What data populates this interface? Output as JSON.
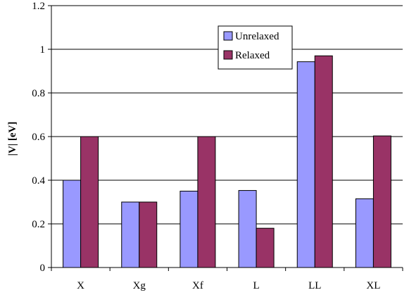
{
  "chart_data": {
    "type": "bar",
    "title": "",
    "xlabel": "",
    "ylabel": "|V| [eV]",
    "ylim": [
      0,
      1.2
    ],
    "yticks": [
      "0",
      "0.2",
      "0.4",
      "0.6",
      "0.8",
      "1",
      "1.2"
    ],
    "grid": true,
    "legend_position": "top-center",
    "categories": [
      "X",
      "Xg",
      "Xf",
      "L",
      "LL",
      "XL"
    ],
    "series": [
      {
        "name": "Unrelaxed",
        "color": "#9999ff",
        "values": [
          0.4,
          0.3,
          0.35,
          0.353,
          0.943,
          0.315
        ]
      },
      {
        "name": "Relaxed",
        "color": "#993366",
        "values": [
          0.6,
          0.3,
          0.6,
          0.18,
          0.97,
          0.603
        ]
      }
    ]
  }
}
